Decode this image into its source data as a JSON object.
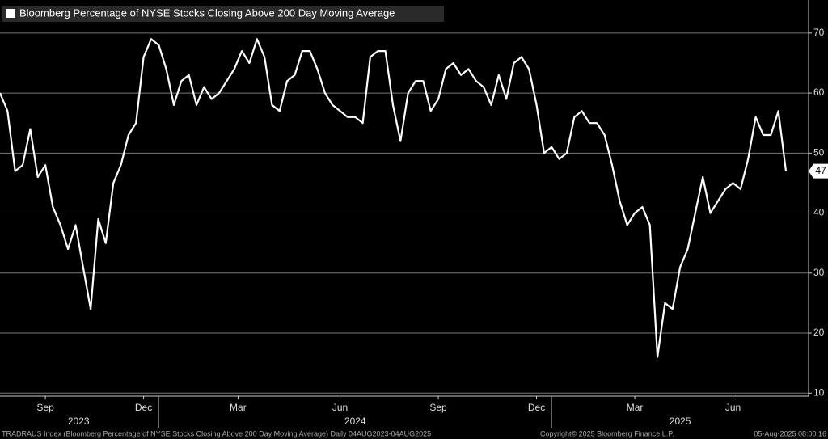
{
  "chart_data": {
    "type": "line",
    "title": "Bloomberg Percentage of NYSE Stocks Closing Above 200 Day Moving Average",
    "values": [
      60,
      57,
      47,
      48,
      54,
      46,
      48,
      41,
      38,
      34,
      38,
      31,
      24,
      39,
      35,
      45,
      48,
      53,
      55,
      66,
      69,
      68,
      64,
      58,
      62,
      63,
      58,
      61,
      59,
      60,
      62,
      64,
      67,
      65,
      69,
      66,
      58,
      57,
      62,
      63,
      67,
      67,
      64,
      60,
      58,
      57,
      56,
      56,
      55,
      66,
      67,
      67,
      58,
      52,
      60,
      62,
      62,
      57,
      59,
      64,
      65,
      63,
      64,
      62,
      61,
      58,
      63,
      59,
      65,
      66,
      64,
      58,
      50,
      51,
      49,
      50,
      56,
      57,
      55,
      55,
      53,
      48,
      42,
      38,
      40,
      41,
      38,
      16,
      25,
      24,
      31,
      34,
      40,
      46,
      40,
      42,
      44,
      45,
      44,
      49,
      56,
      53,
      53,
      57,
      47
    ],
    "color": "#ffffff",
    "xlim": [
      0,
      107
    ],
    "xticks": [
      {
        "value": 6,
        "label": "Sep"
      },
      {
        "value": 19,
        "label": "Dec"
      },
      {
        "value": 31.5,
        "label": "Mar"
      },
      {
        "value": 45,
        "label": "Jun"
      },
      {
        "value": 58,
        "label": "Sep"
      },
      {
        "value": 71,
        "label": "Dec"
      },
      {
        "value": 84,
        "label": "Mar"
      },
      {
        "value": 97,
        "label": "Jun"
      }
    ],
    "year_ticks": [
      {
        "value": 10.4,
        "label": "2023"
      },
      {
        "value": 47,
        "label": "2024"
      },
      {
        "value": 90,
        "label": "2025"
      }
    ],
    "year_dividers": [
      21,
      73
    ],
    "ylim": [
      9.5,
      75.5
    ],
    "yticks": [
      10,
      20,
      30,
      40,
      50,
      60,
      70
    ],
    "grid": true,
    "footer_left": "TRADRAUS Index (Bloomberg Percentage of NYSE Stocks Closing Above 200 Day Moving Average)  Daily 04AUG2023-04AUG2025",
    "footer_mid": "Copyright© 2025 Bloomberg Finance L.P.",
    "footer_right": "05-Aug-2025 08:00:16"
  }
}
